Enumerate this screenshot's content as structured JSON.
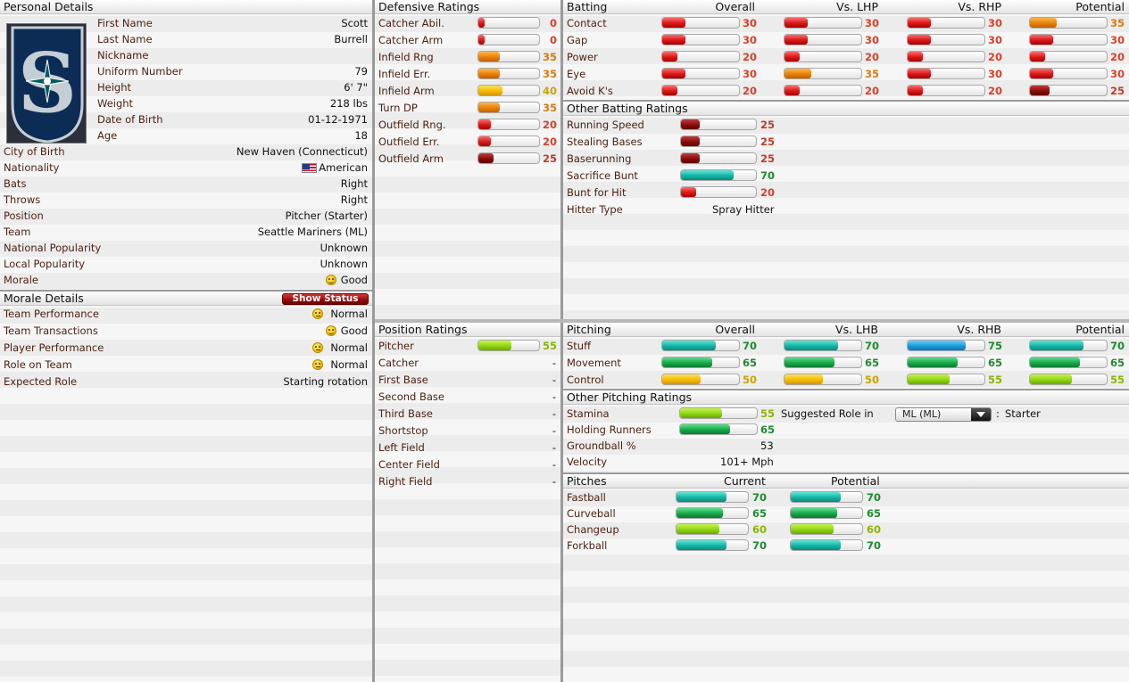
{
  "personal": {
    "header": "Personal Details",
    "fields": [
      {
        "label": "First Name",
        "value": "Scott"
      },
      {
        "label": "Last Name",
        "value": "Burrell"
      },
      {
        "label": "Nickname",
        "value": ""
      },
      {
        "label": "Uniform Number",
        "value": "79"
      },
      {
        "label": "Height",
        "value": "6' 7\""
      },
      {
        "label": "Weight",
        "value": "218 lbs"
      },
      {
        "label": "Date of Birth",
        "value": "01-12-1971"
      },
      {
        "label": "Age",
        "value": "18"
      }
    ],
    "fields2": [
      {
        "label": "City of Birth",
        "value": "New Haven (Connecticut)"
      },
      {
        "label": "Nationality",
        "value": "American",
        "icon": "us-flag-icon"
      },
      {
        "label": "Bats",
        "value": "Right"
      },
      {
        "label": "Throws",
        "value": "Right"
      },
      {
        "label": "Position",
        "value": "Pitcher (Starter)"
      },
      {
        "label": "Team",
        "value": "Seattle Mariners (ML)"
      },
      {
        "label": "National Popularity",
        "value": "Unknown"
      },
      {
        "label": "Local Popularity",
        "value": "Unknown"
      },
      {
        "label": "Morale",
        "value": "Good",
        "icon": "happy-face-icon"
      }
    ],
    "logo_icon": "mariners-logo-icon"
  },
  "morale": {
    "header": "Morale Details",
    "show_status_label": "Show Status",
    "rows": [
      {
        "label": "Team Performance",
        "value": "Normal",
        "mood": "neutral"
      },
      {
        "label": "Team Transactions",
        "value": "Good",
        "mood": "happy"
      },
      {
        "label": "Player Performance",
        "value": "Normal",
        "mood": "neutral"
      },
      {
        "label": "Role on Team",
        "value": "Normal",
        "mood": "neutral"
      },
      {
        "label": "Expected Role",
        "value": "Starting rotation"
      }
    ]
  },
  "defensive": {
    "header": "Defensive Ratings",
    "rows": [
      {
        "label": "Catcher Abil.",
        "value": 0,
        "color": "red"
      },
      {
        "label": "Catcher Arm",
        "value": 0,
        "color": "red"
      },
      {
        "label": "Infield Rng",
        "value": 35,
        "color": "orange"
      },
      {
        "label": "Infield Err.",
        "value": 35,
        "color": "orange"
      },
      {
        "label": "Infield Arm",
        "value": 40,
        "color": "yellow"
      },
      {
        "label": "Turn DP",
        "value": 35,
        "color": "orange"
      },
      {
        "label": "Outfield Rng.",
        "value": 20,
        "color": "red"
      },
      {
        "label": "Outfield Err.",
        "value": 20,
        "color": "red"
      },
      {
        "label": "Outfield Arm",
        "value": 25,
        "color": "dred"
      }
    ]
  },
  "position": {
    "header": "Position Ratings",
    "rows": [
      {
        "label": "Pitcher",
        "value": 55,
        "color": "lime"
      },
      {
        "label": "Catcher",
        "value": "-"
      },
      {
        "label": "First Base",
        "value": "-"
      },
      {
        "label": "Second Base",
        "value": "-"
      },
      {
        "label": "Third Base",
        "value": "-"
      },
      {
        "label": "Shortstop",
        "value": "-"
      },
      {
        "label": "Left Field",
        "value": "-"
      },
      {
        "label": "Center Field",
        "value": "-"
      },
      {
        "label": "Right Field",
        "value": "-"
      }
    ]
  },
  "batting": {
    "header": "Batting",
    "columns": [
      "Overall",
      "Vs. LHP",
      "Vs. RHP",
      "Potential"
    ],
    "rows": [
      {
        "label": "Contact",
        "values": [
          30,
          30,
          30,
          35
        ],
        "colors": [
          "red",
          "red",
          "red",
          "orange"
        ]
      },
      {
        "label": "Gap",
        "values": [
          30,
          30,
          30,
          30
        ],
        "colors": [
          "red",
          "red",
          "red",
          "red"
        ]
      },
      {
        "label": "Power",
        "values": [
          20,
          20,
          20,
          20
        ],
        "colors": [
          "red",
          "red",
          "red",
          "red"
        ]
      },
      {
        "label": "Eye",
        "values": [
          30,
          35,
          30,
          30
        ],
        "colors": [
          "red",
          "orange",
          "red",
          "red"
        ]
      },
      {
        "label": "Avoid K's",
        "values": [
          20,
          20,
          20,
          25
        ],
        "colors": [
          "red",
          "red",
          "red",
          "dred"
        ]
      }
    ]
  },
  "other_batting": {
    "header": "Other Batting Ratings",
    "rows": [
      {
        "label": "Running Speed",
        "value": 25,
        "color": "dred"
      },
      {
        "label": "Stealing Bases",
        "value": 25,
        "color": "dred"
      },
      {
        "label": "Baserunning",
        "value": 25,
        "color": "dred"
      },
      {
        "label": "Sacrifice Bunt",
        "value": 70,
        "color": "teal"
      },
      {
        "label": "Bunt for Hit",
        "value": 20,
        "color": "red"
      }
    ],
    "hitter_type_label": "Hitter Type",
    "hitter_type_value": "Spray Hitter"
  },
  "pitching": {
    "header": "Pitching",
    "columns": [
      "Overall",
      "Vs. LHB",
      "Vs. RHB",
      "Potential"
    ],
    "rows": [
      {
        "label": "Stuff",
        "values": [
          70,
          70,
          75,
          70
        ],
        "colors": [
          "teal",
          "teal",
          "blue",
          "teal"
        ]
      },
      {
        "label": "Movement",
        "values": [
          65,
          65,
          65,
          65
        ],
        "colors": [
          "green",
          "green",
          "green",
          "green"
        ]
      },
      {
        "label": "Control",
        "values": [
          50,
          50,
          55,
          55
        ],
        "colors": [
          "yellow",
          "yellow",
          "lime",
          "lime"
        ]
      }
    ]
  },
  "other_pitching": {
    "header": "Other Pitching Ratings",
    "stamina_label": "Stamina",
    "stamina_value": 55,
    "stamina_color": "lime",
    "suggested_role_label": "Suggested Role in",
    "league_select": "ML (ML)",
    "colon": ":",
    "suggested_role_value": "Starter",
    "holding_label": "Holding Runners",
    "holding_value": 65,
    "holding_color": "green",
    "groundball_label": "Groundball %",
    "groundball_value": "53",
    "velocity_label": "Velocity",
    "velocity_value": "101+ Mph"
  },
  "pitches": {
    "header": "Pitches",
    "columns": [
      "Current",
      "Potential"
    ],
    "rows": [
      {
        "label": "Fastball",
        "values": [
          70,
          70
        ],
        "colors": [
          "teal",
          "teal"
        ]
      },
      {
        "label": "Curveball",
        "values": [
          65,
          65
        ],
        "colors": [
          "green",
          "green"
        ]
      },
      {
        "label": "Changeup",
        "values": [
          60,
          60
        ],
        "colors": [
          "lime",
          "lime"
        ]
      },
      {
        "label": "Forkball",
        "values": [
          70,
          70
        ],
        "colors": [
          "teal",
          "teal"
        ]
      }
    ]
  }
}
